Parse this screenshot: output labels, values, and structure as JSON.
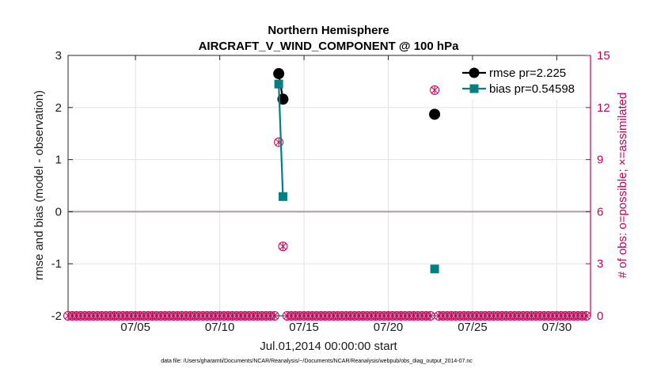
{
  "chart_data": {
    "type": "line",
    "title": "Northern Hemisphere",
    "subtitle": "AIRCRAFT_V_WIND_COMPONENT @ 100 hPa",
    "xlabel": "Jul.01,2014 00:00:00 start",
    "ylabel": "rmse and bias (model - observation)",
    "ylabel_right": "# of obs: o=possible; ×=assimilated",
    "footnote": "data file: /Users/gharamti/Documents/NCAR/Reanalysis/~/Documents/NCAR/Reanalysis/webpub/obs_diag_output_2014-07.nc",
    "xlim": [
      1.0,
      32.0
    ],
    "ylim": [
      -2,
      3
    ],
    "ylim_right": [
      0,
      15
    ],
    "x_ticks": [
      5,
      10,
      15,
      20,
      25,
      30
    ],
    "x_tick_labels": [
      "07/05",
      "07/10",
      "07/15",
      "07/20",
      "07/25",
      "07/30"
    ],
    "y_ticks": [
      -2,
      -1,
      0,
      1,
      2,
      3
    ],
    "y_tick_labels": [
      "-2",
      "-1",
      "0",
      "1",
      "2",
      "3"
    ],
    "y_ticks_right": [
      0,
      3,
      6,
      9,
      12,
      15
    ],
    "y_tick_labels_right": [
      "0",
      "3",
      "6",
      "9",
      "12",
      "15"
    ],
    "grid": true,
    "legend_position": "top-right",
    "series": [
      {
        "name": "rmse pr=2.225",
        "color": "#000000",
        "marker": "circle",
        "x": [
          13.5,
          13.75,
          22.75
        ],
        "values": [
          2.65,
          2.16,
          1.87
        ],
        "segments": [
          [
            13.5,
            13.75
          ]
        ]
      },
      {
        "name": "bias pr=0.54598",
        "color": "#008080",
        "marker": "square",
        "x": [
          13.5,
          13.75,
          22.75
        ],
        "values": [
          2.45,
          0.29,
          -1.1
        ],
        "segments": [
          [
            13.5,
            13.75
          ]
        ]
      }
    ],
    "obs_counts": {
      "color": "#c8005a",
      "nonzero": [
        {
          "x": 13.5,
          "possible": 10,
          "assimilated": 10
        },
        {
          "x": 13.75,
          "possible": 4,
          "assimilated": 4
        },
        {
          "x": 22.75,
          "possible": 13,
          "assimilated": 13
        }
      ],
      "zero_baseline_start": 1.0,
      "zero_baseline_end": 31.75,
      "zero_baseline_step": 0.25
    }
  }
}
